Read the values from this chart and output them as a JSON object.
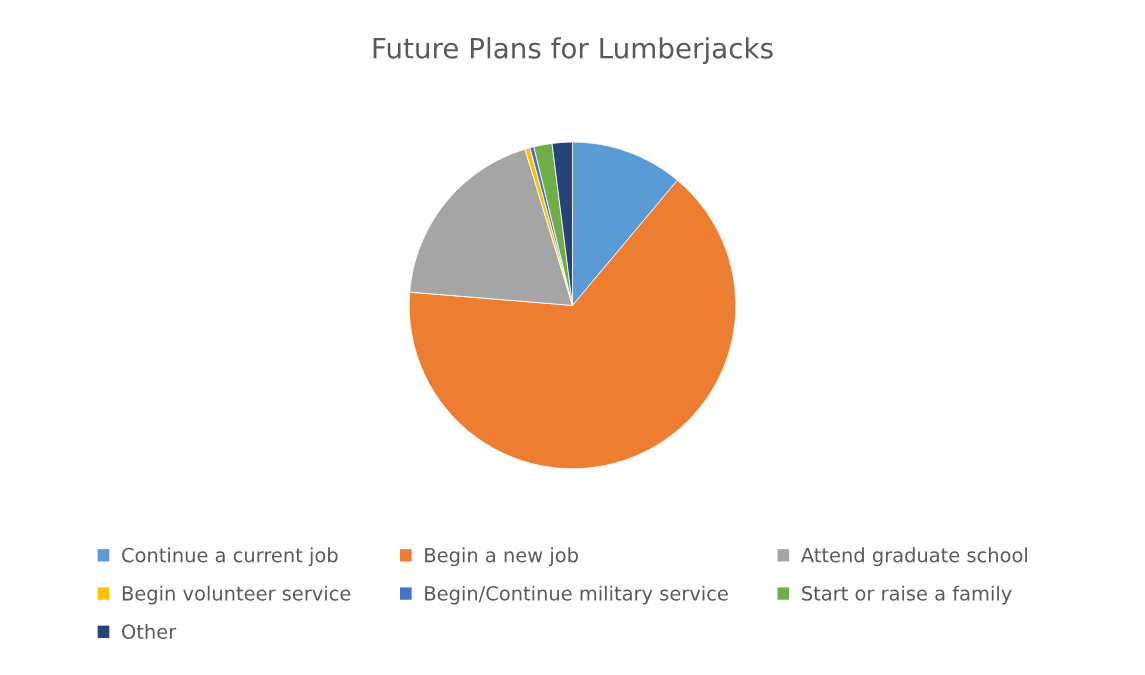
{
  "chart_data": {
    "type": "pie",
    "title": "Future Plans for Lumberjacks",
    "categories": [
      "Continue a current job",
      "Begin a new job",
      "Attend graduate school",
      "Begin volunteer service",
      "Begin/Continue military service",
      "Start or raise a family",
      "Other"
    ],
    "values": [
      11.1,
      65.2,
      19.0,
      0.5,
      0.4,
      1.8,
      2.0
    ],
    "colors": [
      "#5b9bd5",
      "#ed7d31",
      "#a5a5a5",
      "#ffc000",
      "#4472c4",
      "#70ad47",
      "#264478"
    ],
    "legend": "bottom"
  }
}
